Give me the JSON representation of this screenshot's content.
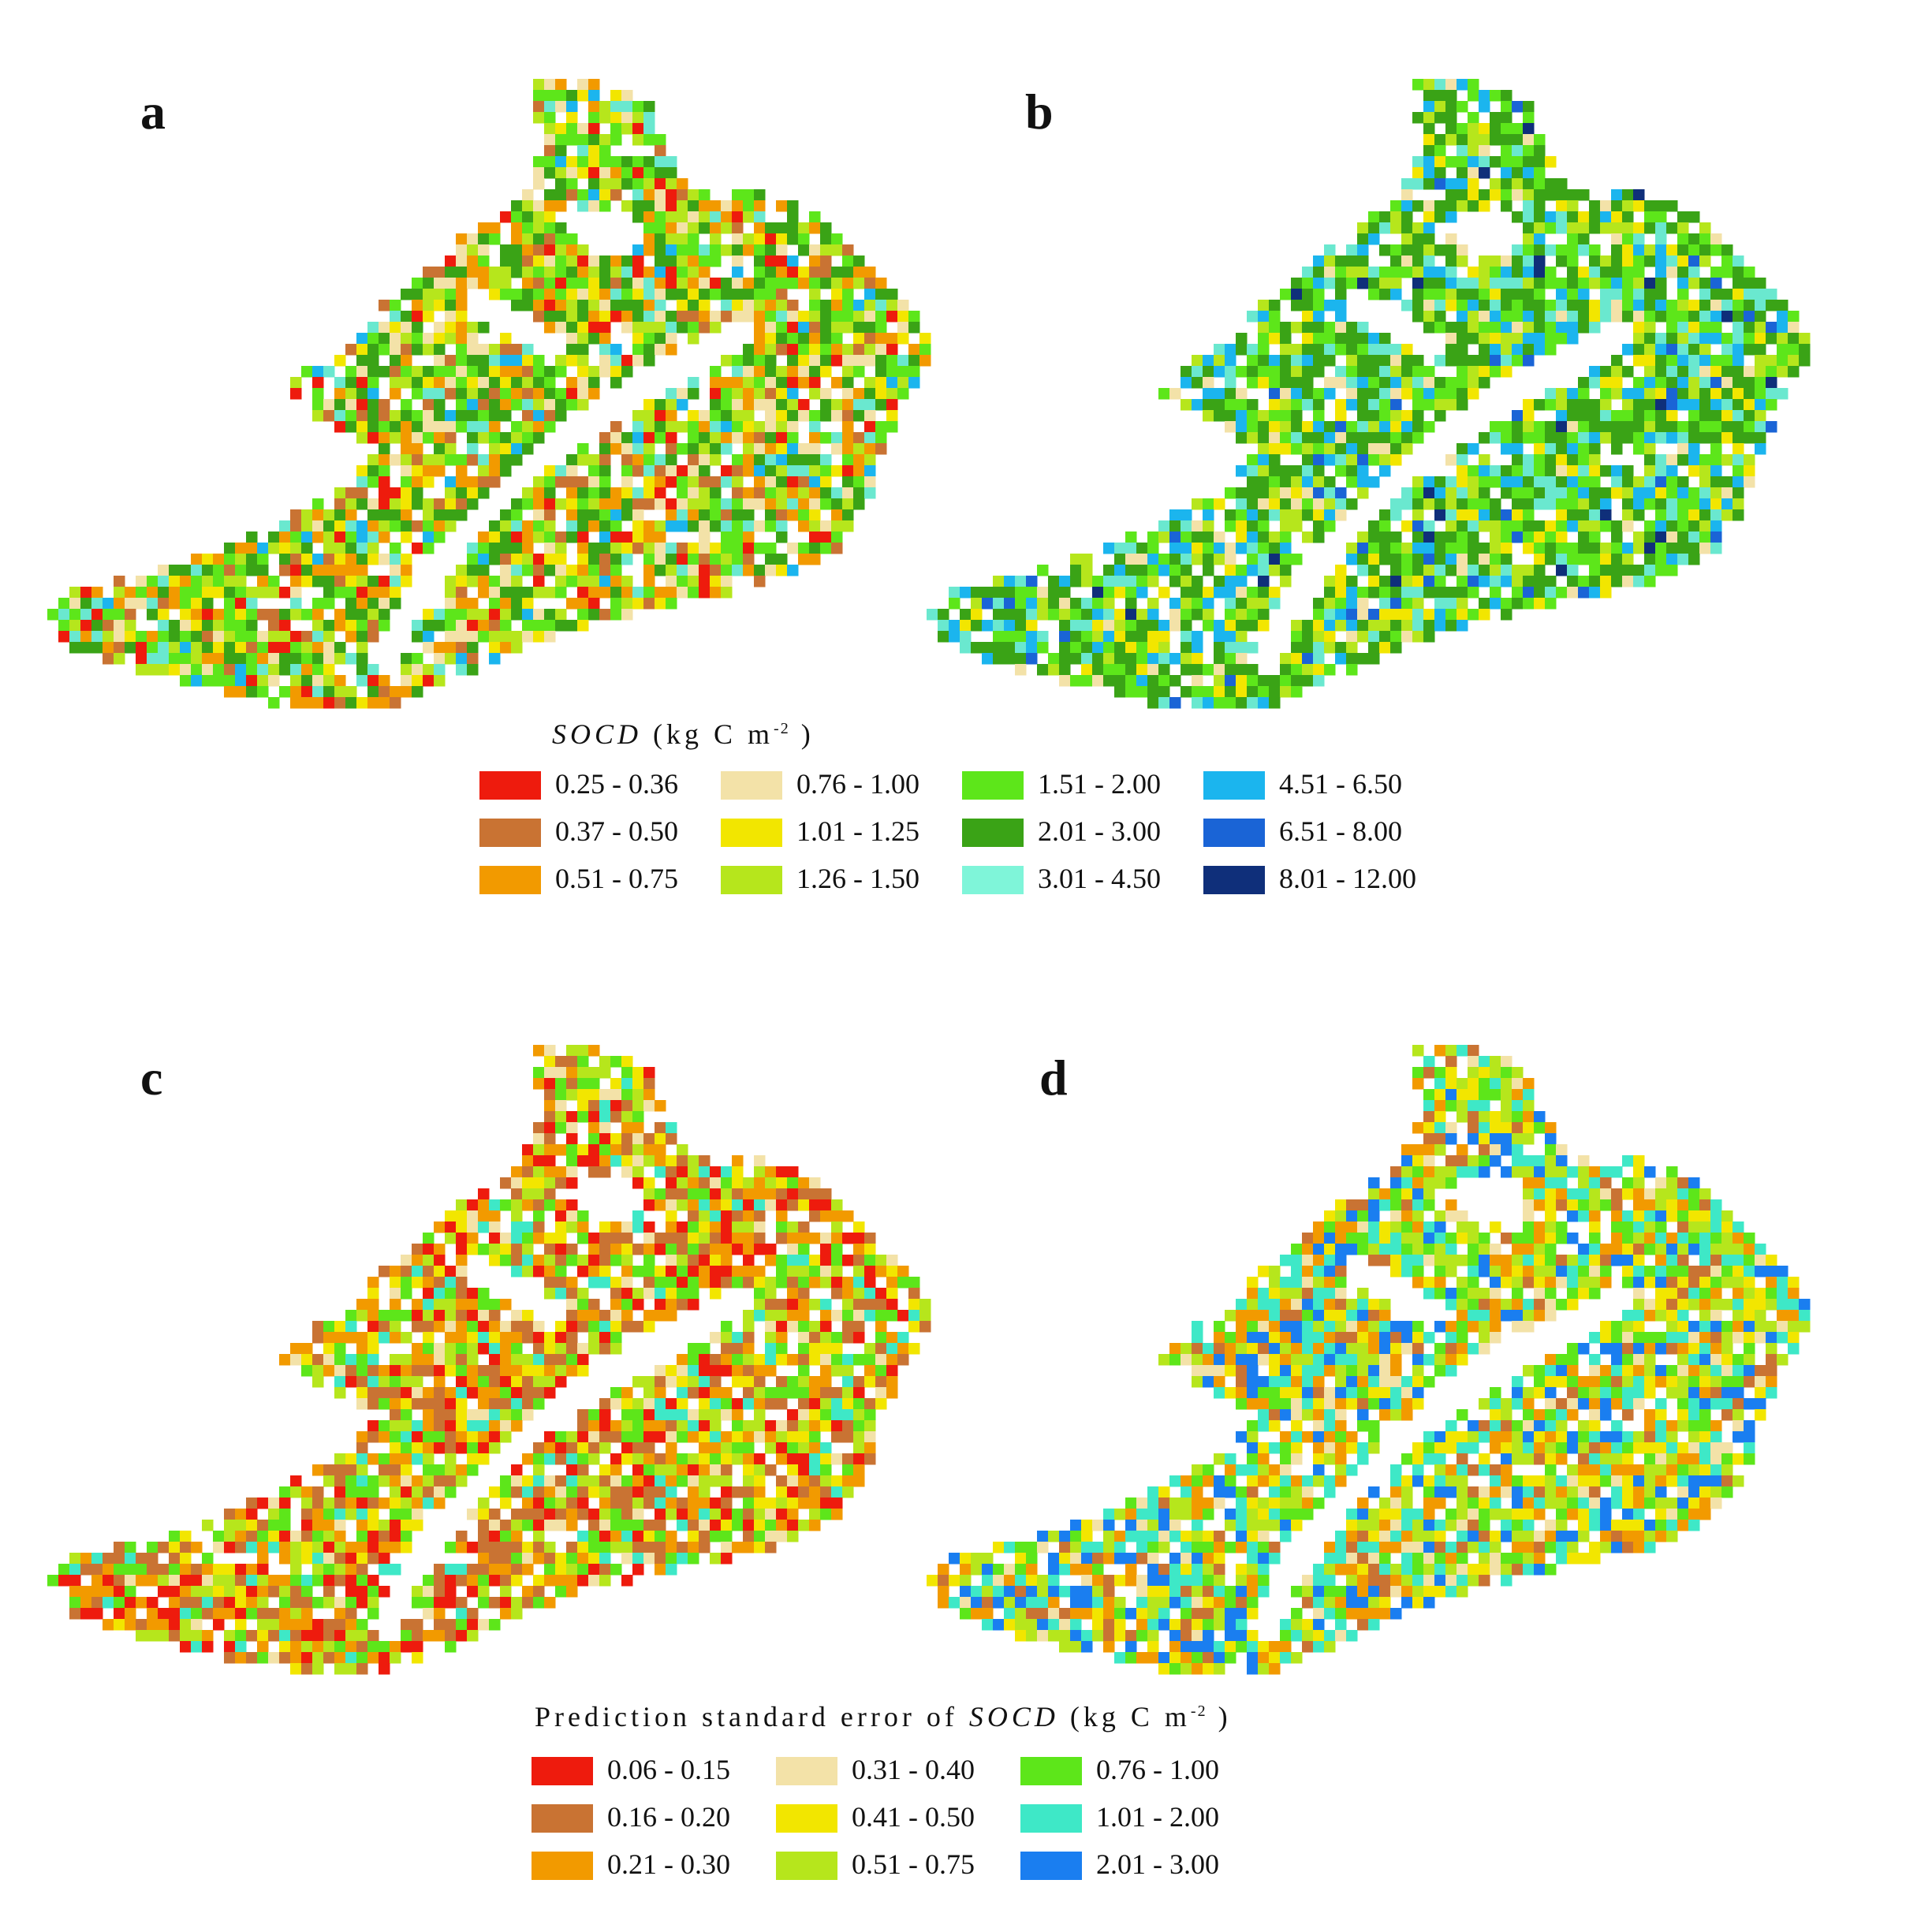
{
  "panels": [
    {
      "letter": "a",
      "palette": [
        "#f3e2a8",
        "#f2e600",
        "#b6e61c",
        "#5de61a",
        "#3aa316",
        "#6ae8cf",
        "#1bb5ee",
        "#f29a00",
        "#c97333",
        "#ee1b0d"
      ],
      "weights": [
        0.14,
        0.1,
        0.16,
        0.18,
        0.16,
        0.06,
        0.02,
        0.1,
        0.05,
        0.03
      ]
    },
    {
      "letter": "b",
      "palette": [
        "#3aa316",
        "#5de61a",
        "#b6e61c",
        "#f2e600",
        "#f3e2a8",
        "#6ae8cf",
        "#1bb5ee",
        "#1a64d6",
        "#0f2f7a"
      ],
      "weights": [
        0.26,
        0.18,
        0.12,
        0.07,
        0.05,
        0.12,
        0.14,
        0.04,
        0.02
      ]
    },
    {
      "letter": "c",
      "palette": [
        "#f3e2a8",
        "#f2e600",
        "#b6e61c",
        "#5de61a",
        "#3ee8c7",
        "#f29a00",
        "#c97333",
        "#ee1b0d"
      ],
      "weights": [
        0.12,
        0.12,
        0.16,
        0.14,
        0.06,
        0.16,
        0.14,
        0.1
      ]
    },
    {
      "letter": "d",
      "palette": [
        "#b6e61c",
        "#5de61a",
        "#3ee8c7",
        "#f2e600",
        "#f3e2a8",
        "#f29a00",
        "#c97333",
        "#1a7ef0"
      ],
      "weights": [
        0.22,
        0.14,
        0.18,
        0.12,
        0.06,
        0.12,
        0.06,
        0.1
      ]
    }
  ],
  "legend_socd": {
    "title_var": "SOCD",
    "title_units_pre": " (kg  C  m",
    "title_sup": "-2",
    "title_units_post": " )",
    "items": [
      {
        "label": "0.25 - 0.36",
        "color": "#ee1b0d"
      },
      {
        "label": "0.37 - 0.50",
        "color": "#c97333"
      },
      {
        "label": "0.51 - 0.75",
        "color": "#f29a00"
      },
      {
        "label": "0.76 - 1.00",
        "color": "#f3e2a8"
      },
      {
        "label": "1.01 - 1.25",
        "color": "#f2e600"
      },
      {
        "label": "1.26 - 1.50",
        "color": "#b6e61c"
      },
      {
        "label": "1.51 - 2.00",
        "color": "#5de61a"
      },
      {
        "label": "2.01 - 3.00",
        "color": "#3aa316"
      },
      {
        "label": "3.01 - 4.50",
        "color": "#7ff5d9"
      },
      {
        "label": "4.51 - 6.50",
        "color": "#1bb5ee"
      },
      {
        "label": "6.51 - 8.00",
        "color": "#1a64d6"
      },
      {
        "label": "8.01 - 12.00",
        "color": "#0f2f7a"
      }
    ]
  },
  "legend_error": {
    "title_pre": "Prediction  standard  error  of ",
    "title_var": "SOCD",
    "title_units_pre": " (kg  C  m",
    "title_sup": "-2",
    "title_units_post": " )",
    "items": [
      {
        "label": "0.06 - 0.15",
        "color": "#ee1b0d"
      },
      {
        "label": "0.16 - 0.20",
        "color": "#c97333"
      },
      {
        "label": "0.21 - 0.30",
        "color": "#f29a00"
      },
      {
        "label": "0.31 - 0.40",
        "color": "#f3e2a8"
      },
      {
        "label": "0.41 - 0.50",
        "color": "#f2e600"
      },
      {
        "label": "0.51 - 0.75",
        "color": "#b6e61c"
      },
      {
        "label": "0.76 - 1.00",
        "color": "#5de61a"
      },
      {
        "label": "1.01 - 2.00",
        "color": "#3ee8c7"
      },
      {
        "label": "2.01 - 3.00",
        "color": "#1a7ef0"
      }
    ]
  }
}
